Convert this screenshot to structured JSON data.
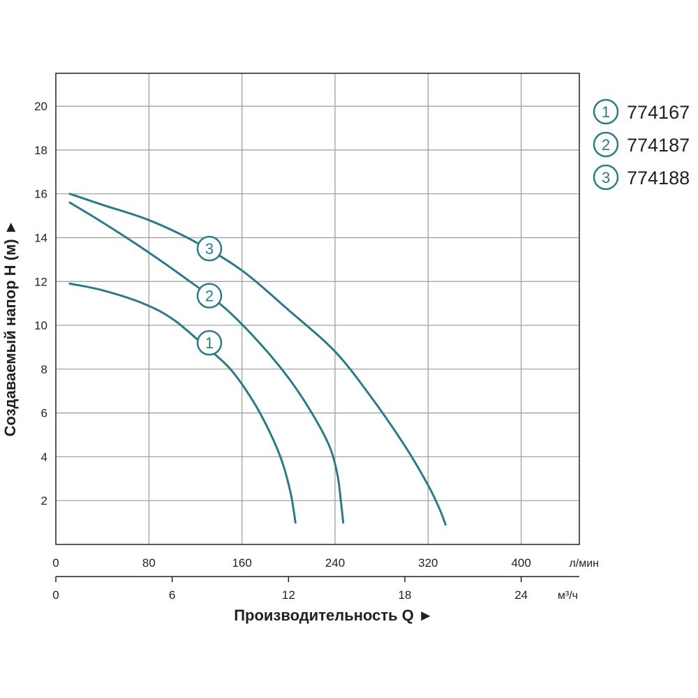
{
  "chart_data": {
    "type": "line",
    "ylabel": "Создаваемый напор H (м) ►",
    "xlabel": "Производительность Q ►",
    "ylim": [
      0,
      21.5
    ],
    "xlim": [
      0,
      450
    ],
    "grid": true,
    "colors": {
      "series": "#2a7b88",
      "grid": "#9a9a9a",
      "frame": "#231f20",
      "text": "#231f20"
    },
    "y_ticks": [
      2,
      4,
      6,
      8,
      10,
      12,
      14,
      16,
      18,
      20
    ],
    "x_axis_primary": {
      "unit": "л/мин",
      "ticks": [
        0,
        80,
        160,
        240,
        320,
        400
      ]
    },
    "x_axis_secondary": {
      "unit": "м³/ч",
      "ticks": [
        0,
        6,
        12,
        18,
        24
      ]
    },
    "legend_position": "top-right",
    "series": [
      {
        "marker": "1",
        "name": "774167",
        "points": [
          [
            12,
            11.9
          ],
          [
            40,
            11.6
          ],
          [
            75,
            11.0
          ],
          [
            100,
            10.3
          ],
          [
            125,
            9.2
          ],
          [
            150,
            8.0
          ],
          [
            170,
            6.5
          ],
          [
            185,
            5.0
          ],
          [
            195,
            3.7
          ],
          [
            202,
            2.3
          ],
          [
            206,
            1.0
          ]
        ]
      },
      {
        "marker": "2",
        "name": "774187",
        "points": [
          [
            12,
            15.6
          ],
          [
            40,
            14.7
          ],
          [
            75,
            13.5
          ],
          [
            110,
            12.2
          ],
          [
            145,
            10.8
          ],
          [
            175,
            9.2
          ],
          [
            200,
            7.6
          ],
          [
            220,
            6.0
          ],
          [
            235,
            4.5
          ],
          [
            242,
            3.2
          ],
          [
            245,
            2.0
          ],
          [
            247,
            1.0
          ]
        ]
      },
      {
        "marker": "3",
        "name": "774188",
        "points": [
          [
            12,
            16.0
          ],
          [
            40,
            15.5
          ],
          [
            80,
            14.8
          ],
          [
            120,
            13.8
          ],
          [
            160,
            12.5
          ],
          [
            200,
            10.7
          ],
          [
            240,
            8.8
          ],
          [
            270,
            6.8
          ],
          [
            300,
            4.5
          ],
          [
            320,
            2.7
          ],
          [
            330,
            1.6
          ],
          [
            335,
            0.9
          ]
        ]
      }
    ],
    "curve_markers": [
      {
        "label": "1",
        "x": 132,
        "y": 9.2
      },
      {
        "label": "2",
        "x": 132,
        "y": 11.35
      },
      {
        "label": "3",
        "x": 132,
        "y": 13.5
      }
    ]
  }
}
